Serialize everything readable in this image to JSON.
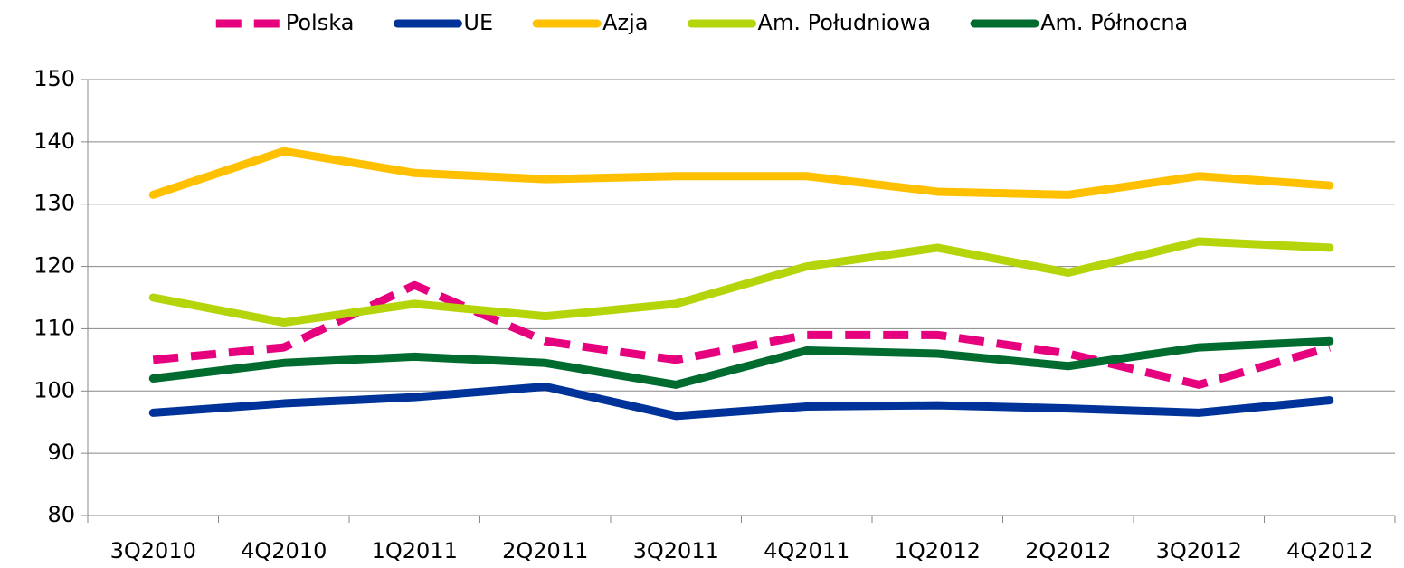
{
  "chart_data": {
    "type": "line",
    "categories": [
      "3Q2010",
      "4Q2010",
      "1Q2011",
      "2Q2011",
      "3Q2011",
      "4Q2011",
      "1Q2012",
      "2Q2012",
      "3Q2012",
      "4Q2012"
    ],
    "series": [
      {
        "name": "Polska",
        "color": "#e6007e",
        "dashed": true,
        "values": [
          105,
          107,
          117,
          108,
          105,
          109,
          109,
          106,
          101,
          107
        ]
      },
      {
        "name": "UE",
        "color": "#003399",
        "values": [
          96.5,
          98,
          99,
          100.7,
          96,
          97.5,
          97.7,
          97.2,
          96.5,
          98.5
        ]
      },
      {
        "name": "Azja",
        "color": "#ffc000",
        "values": [
          131.5,
          138.5,
          135,
          134,
          134.5,
          134.5,
          132,
          131.5,
          134.5,
          133
        ]
      },
      {
        "name": "Am. Południowa",
        "color": "#b5d40a",
        "values": [
          115,
          111,
          114,
          112,
          114,
          120,
          123,
          119,
          124,
          123
        ]
      },
      {
        "name": "Am. Północna",
        "color": "#006b2f",
        "values": [
          102,
          104.5,
          105.5,
          104.5,
          101,
          106.5,
          106,
          104,
          107,
          108
        ]
      }
    ],
    "ylim": [
      80,
      150
    ],
    "yticks": [
      80,
      90,
      100,
      110,
      120,
      130,
      140,
      150
    ],
    "grid": true,
    "legend": "top"
  }
}
